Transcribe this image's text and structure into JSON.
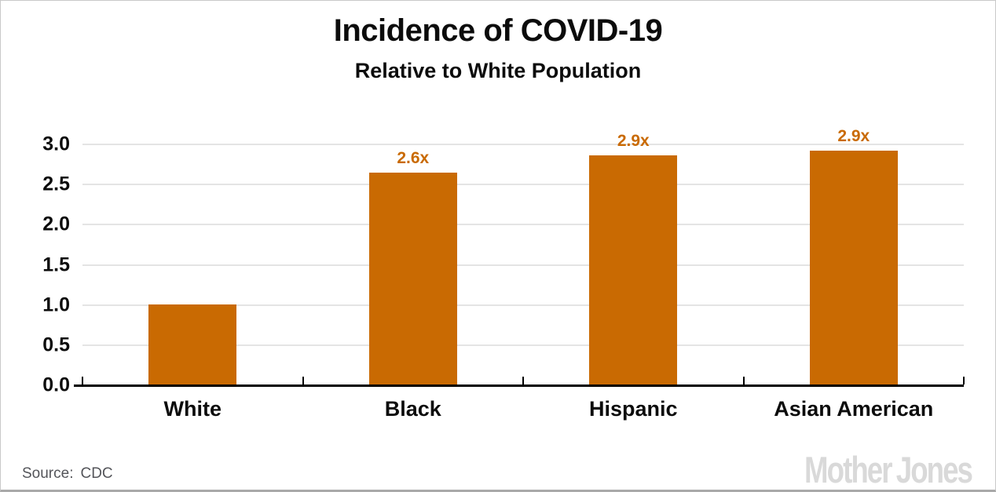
{
  "chart_data": {
    "type": "bar",
    "title": "Incidence of COVID-19",
    "subtitle": "Relative to White Population",
    "categories": [
      "White",
      "Black",
      "Hispanic",
      "Asian American"
    ],
    "values": [
      1.0,
      2.64,
      2.85,
      2.91
    ],
    "bar_labels": [
      "",
      "2.6x",
      "2.9x",
      "2.9x"
    ],
    "xlabel": "",
    "ylabel": "",
    "ylim": [
      0,
      3.0
    ],
    "yticks": [
      0.0,
      0.5,
      1.0,
      1.5,
      2.0,
      2.5,
      3.0
    ],
    "ytick_labels": [
      "0.0",
      "0.5",
      "1.0",
      "1.5",
      "2.0",
      "2.5",
      "3.0"
    ],
    "grid": "horizontal",
    "legend": "none",
    "bar_color": "#c96a02",
    "value_label_color": "#c96a02",
    "grid_color": "#e4e4e4",
    "axis_color": "#000000",
    "text_color": "#0c0c0c"
  },
  "footer": {
    "source_prefix": "Source:",
    "source_value": "CDC",
    "source_color": "#54555a"
  },
  "branding": {
    "logo_words": [
      "Mother",
      "Jones"
    ],
    "logo_color": "#d9d9d9"
  }
}
